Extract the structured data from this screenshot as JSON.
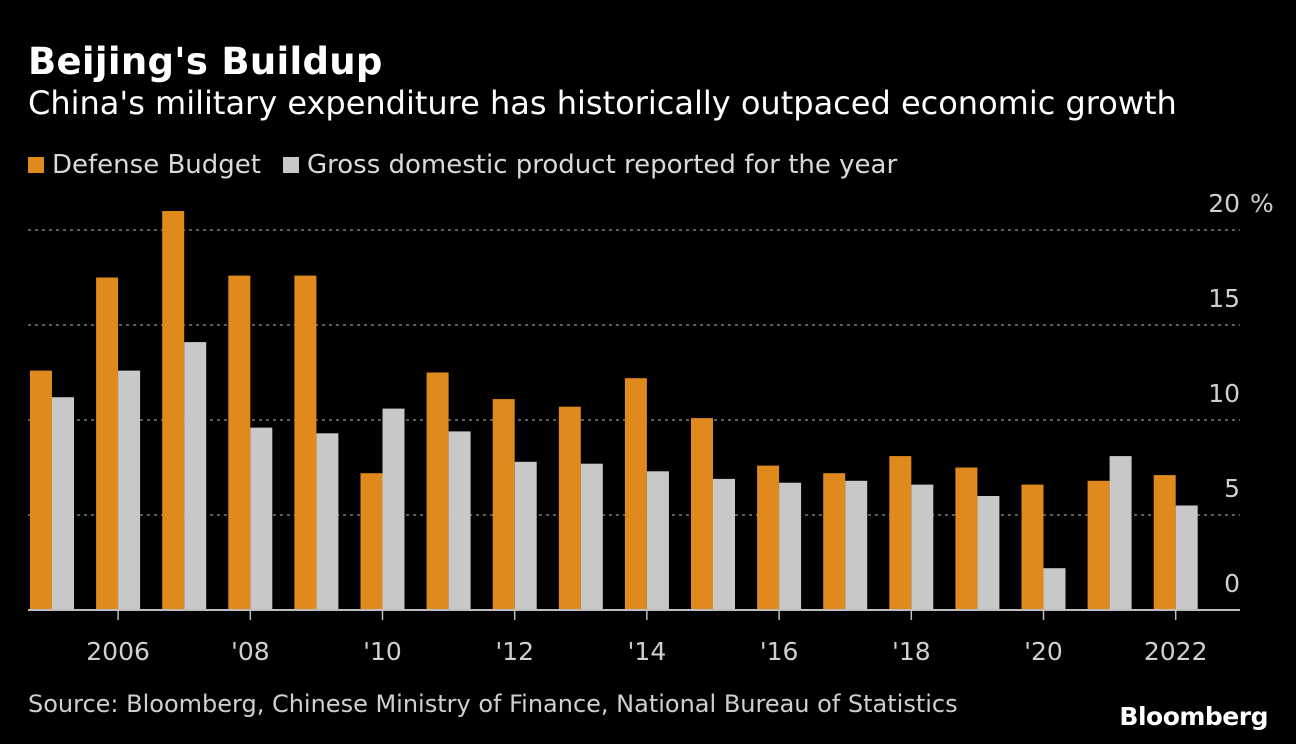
{
  "colors": {
    "background": "#000000",
    "defense": "#e08a1e",
    "gdp": "#c8c8c8",
    "grid": "#7a7a7a",
    "text": "#ffffff",
    "muted": "#cfcfcf"
  },
  "chart_data": {
    "type": "bar",
    "title": "Beijing's Buildup",
    "subtitle": "China's military expenditure has historically outpaced economic growth",
    "years": [
      2005,
      2006,
      2007,
      2008,
      2009,
      2010,
      2011,
      2012,
      2013,
      2014,
      2015,
      2016,
      2017,
      2018,
      2019,
      2020,
      2021,
      2022
    ],
    "x_tick_labels": [
      {
        "year": 2006,
        "label": "2006"
      },
      {
        "year": 2008,
        "label": "'08"
      },
      {
        "year": 2010,
        "label": "'10"
      },
      {
        "year": 2012,
        "label": "'12"
      },
      {
        "year": 2014,
        "label": "'14"
      },
      {
        "year": 2016,
        "label": "'16"
      },
      {
        "year": 2018,
        "label": "'18"
      },
      {
        "year": 2020,
        "label": "'20"
      },
      {
        "year": 2022,
        "label": "2022"
      }
    ],
    "series": [
      {
        "name": "Defense Budget",
        "color_key": "defense",
        "values": [
          12.6,
          17.5,
          21.0,
          17.6,
          17.6,
          7.2,
          12.5,
          11.1,
          10.7,
          12.2,
          10.1,
          7.6,
          7.2,
          8.1,
          7.5,
          6.6,
          6.8,
          7.1
        ]
      },
      {
        "name": "Gross domestic product reported for the year",
        "color_key": "gdp",
        "values": [
          11.2,
          12.6,
          14.1,
          9.6,
          9.3,
          10.6,
          9.4,
          7.8,
          7.7,
          7.3,
          6.9,
          6.7,
          6.8,
          6.6,
          6.0,
          2.2,
          8.1,
          5.5
        ]
      }
    ],
    "y_axis": {
      "ylim": [
        0,
        21
      ],
      "ticks": [
        0,
        5,
        10,
        15,
        20
      ],
      "tick_labels": [
        "0",
        "5",
        "10",
        "15",
        "20"
      ],
      "unit": "%",
      "side": "right",
      "grid": true
    },
    "legend_position": "top-left"
  },
  "source": "Source: Bloomberg, Chinese Ministry of Finance, National Bureau of Statistics",
  "brand": "Bloomberg"
}
